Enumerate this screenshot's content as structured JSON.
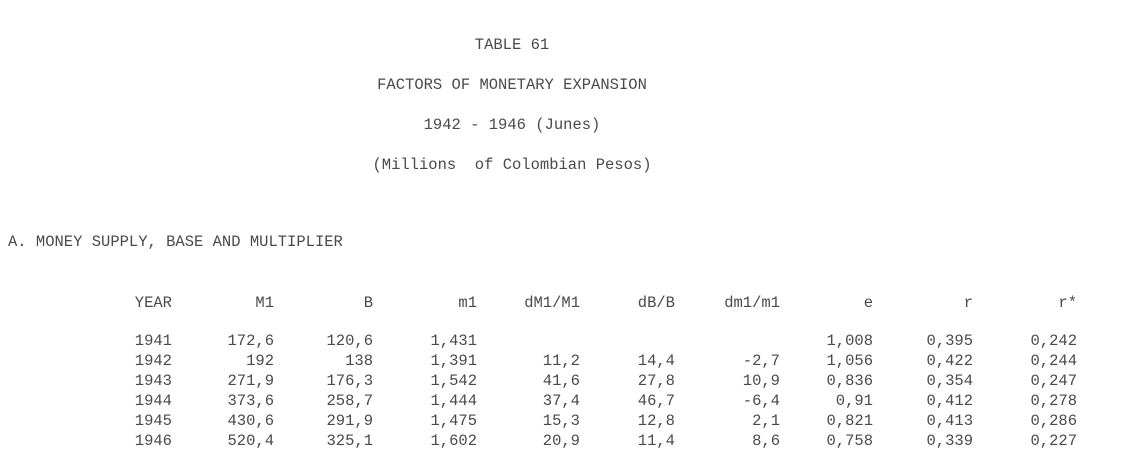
{
  "page": {
    "title_lines": [
      "TABLE 61",
      "FACTORS OF MONETARY EXPANSION",
      "1942 - 1946 (Junes)",
      "(Millions  of Colombian Pesos)"
    ],
    "section_header": "A. MONEY SUPPLY, BASE AND MULTIPLIER"
  },
  "chart_data": {
    "type": "table",
    "title": "TABLE 61 - FACTORS OF MONETARY EXPANSION, 1942 - 1946 (Junes), (Millions of Colombian Pesos)",
    "section": "A. MONEY SUPPLY, BASE AND MULTIPLIER",
    "columns": [
      "YEAR",
      "M1",
      "B",
      "m1",
      "dM1/M1",
      "dB/B",
      "dm1/m1",
      "e",
      "r",
      "r*"
    ],
    "rows": [
      [
        "1941",
        "172,6",
        "120,6",
        "1,431",
        "",
        "",
        "",
        "1,008",
        "0,395",
        "0,242"
      ],
      [
        "1942",
        "192",
        "138",
        "1,391",
        "11,2",
        "14,4",
        "-2,7",
        "1,056",
        "0,422",
        "0,244"
      ],
      [
        "1943",
        "271,9",
        "176,3",
        "1,542",
        "41,6",
        "27,8",
        "10,9",
        "0,836",
        "0,354",
        "0,247"
      ],
      [
        "1944",
        "373,6",
        "258,7",
        "1,444",
        "37,4",
        "46,7",
        "-6,4",
        "0,91",
        "0,412",
        "0,278"
      ],
      [
        "1945",
        "430,6",
        "291,9",
        "1,475",
        "15,3",
        "12,8",
        "2,1",
        "0,821",
        "0,413",
        "0,286"
      ],
      [
        "1946",
        "520,4",
        "325,1",
        "1,602",
        "20,9",
        "11,4",
        "8,6",
        "0,758",
        "0,339",
        "0,227"
      ]
    ],
    "layout": {
      "numeric_alignment": "right",
      "decimal_separator": ",",
      "grid": false
    }
  }
}
